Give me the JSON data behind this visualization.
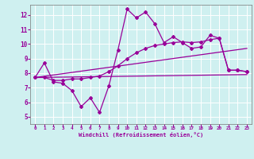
{
  "title": "",
  "xlabel": "Windchill (Refroidissement éolien,°C)",
  "ylabel": "",
  "bg_color": "#cff0f0",
  "line_color": "#990099",
  "grid_color": "#ffffff",
  "xlim": [
    -0.5,
    23.5
  ],
  "ylim": [
    4.5,
    12.7
  ],
  "yticks": [
    5,
    6,
    7,
    8,
    9,
    10,
    11,
    12
  ],
  "xticks": [
    0,
    1,
    2,
    3,
    4,
    5,
    6,
    7,
    8,
    9,
    10,
    11,
    12,
    13,
    14,
    15,
    16,
    17,
    18,
    19,
    20,
    21,
    22,
    23
  ],
  "series": {
    "line1_x": [
      0,
      1,
      2,
      3,
      4,
      5,
      6,
      7,
      8,
      9,
      10,
      11,
      12,
      13,
      14,
      15,
      16,
      17,
      18,
      19,
      20,
      21,
      22,
      23
    ],
    "line1_y": [
      7.7,
      8.7,
      7.4,
      7.3,
      6.8,
      5.7,
      6.3,
      5.3,
      7.1,
      9.6,
      12.4,
      11.8,
      12.2,
      11.4,
      10.1,
      10.5,
      10.1,
      9.7,
      9.8,
      10.6,
      10.4,
      8.2,
      8.2,
      8.1
    ],
    "line2_x": [
      0,
      23
    ],
    "line2_y": [
      7.7,
      7.9
    ],
    "line3_x": [
      0,
      1,
      2,
      3,
      4,
      5,
      6,
      7,
      8,
      9,
      10,
      11,
      12,
      13,
      14,
      15,
      16,
      17,
      18,
      19,
      20,
      21,
      22,
      23
    ],
    "line3_y": [
      7.7,
      7.7,
      7.5,
      7.5,
      7.6,
      7.6,
      7.7,
      7.8,
      8.1,
      8.5,
      9.0,
      9.4,
      9.7,
      9.9,
      10.0,
      10.1,
      10.15,
      10.1,
      10.15,
      10.3,
      10.4,
      8.2,
      8.2,
      8.1
    ],
    "line4_x": [
      0,
      23
    ],
    "line4_y": [
      7.7,
      9.7
    ]
  }
}
